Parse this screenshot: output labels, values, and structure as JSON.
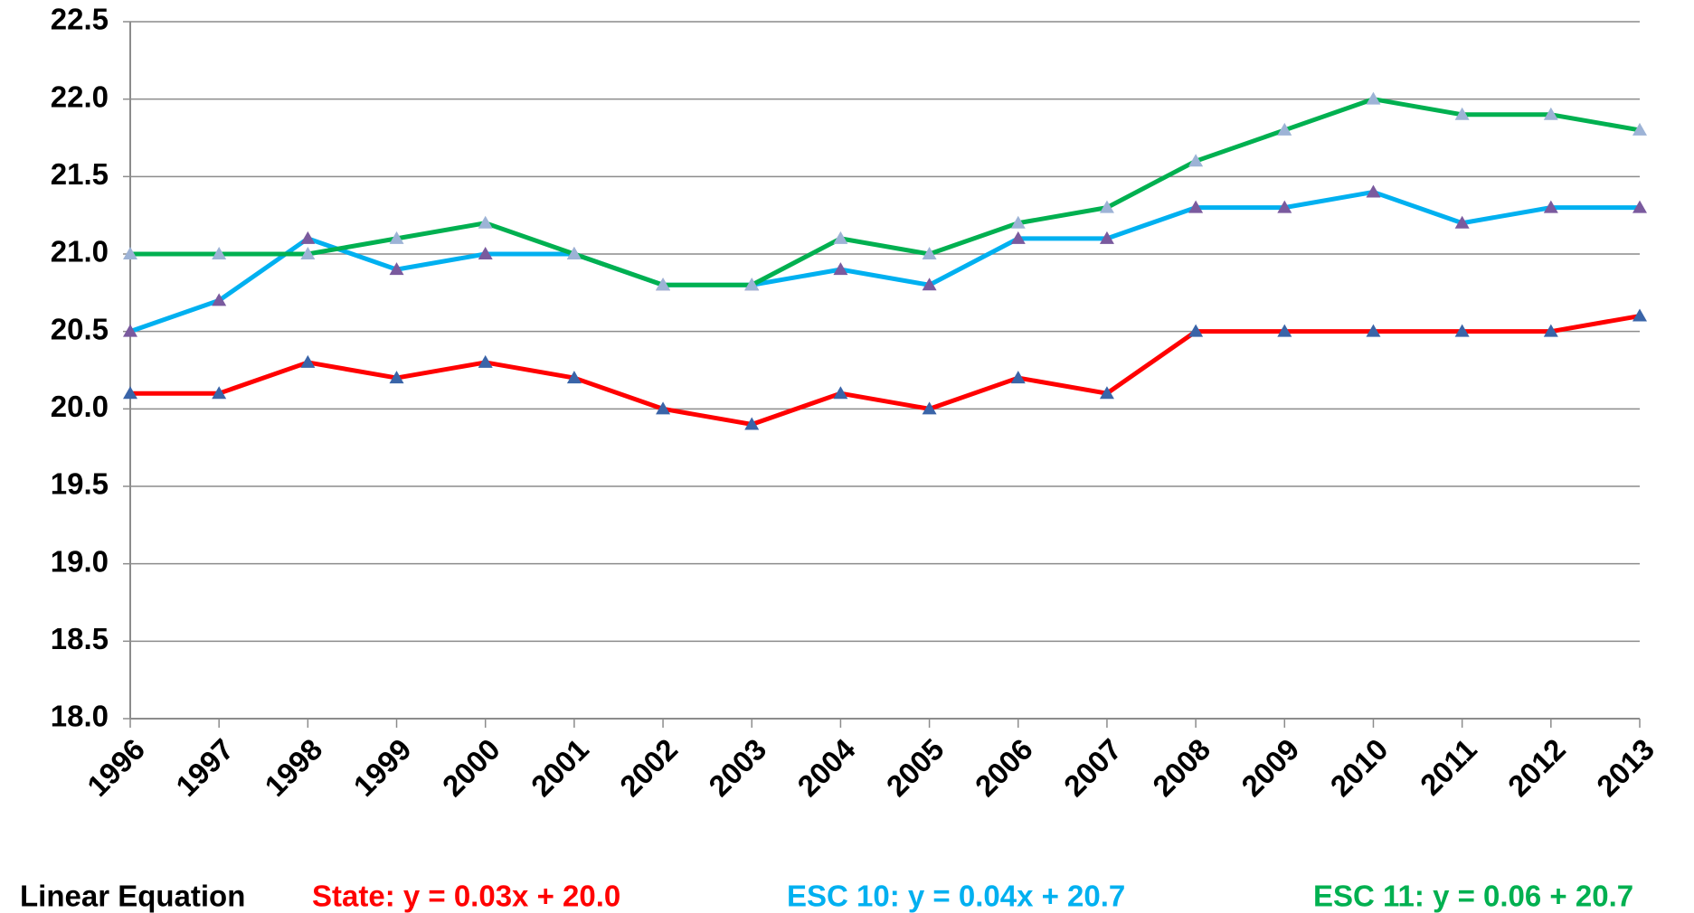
{
  "chart_data": {
    "type": "line",
    "categories": [
      "1996",
      "1997",
      "1998",
      "1999",
      "2000",
      "2001",
      "2002",
      "2003",
      "2004",
      "2005",
      "2006",
      "2007",
      "2008",
      "2009",
      "2010",
      "2011",
      "2012",
      "2013"
    ],
    "series": [
      {
        "color": "#ff0000",
        "marker_color": "#3a64a8",
        "values": [
          20.1,
          20.1,
          20.3,
          20.2,
          20.3,
          20.2,
          20.0,
          19.9,
          20.1,
          20.0,
          20.2,
          20.1,
          20.5,
          20.5,
          20.5,
          20.5,
          20.5,
          20.6
        ]
      },
      {
        "color": "#00b0f0",
        "marker_color": "#7a5a9e",
        "values": [
          20.5,
          20.7,
          21.1,
          20.9,
          21.0,
          21.0,
          20.8,
          20.8,
          20.9,
          20.8,
          21.1,
          21.1,
          21.3,
          21.3,
          21.4,
          21.2,
          21.3,
          21.3
        ]
      },
      {
        "color": "#00b050",
        "marker_color": "#9db3d6",
        "values": [
          21.0,
          21.0,
          21.0,
          21.1,
          21.2,
          21.0,
          20.8,
          20.8,
          21.1,
          21.0,
          21.2,
          21.3,
          21.6,
          21.8,
          22.0,
          21.9,
          21.9,
          21.8
        ]
      }
    ],
    "ylim": [
      18,
      22.5
    ],
    "yticks": [
      {
        "value": 18,
        "label": "18.0"
      },
      {
        "value": 18.5,
        "label": "18.5"
      },
      {
        "value": 19,
        "label": "19.0"
      },
      {
        "value": 19.5,
        "label": "19.5"
      },
      {
        "value": 20,
        "label": "20.0"
      },
      {
        "value": 20.5,
        "label": "20.5"
      },
      {
        "value": 21,
        "label": "21.0"
      },
      {
        "value": 21.5,
        "label": "21.5"
      },
      {
        "value": 22,
        "label": "22.0"
      },
      {
        "value": 22.5,
        "label": "22.5"
      }
    ],
    "grid": true,
    "annotations": [
      {
        "text": "Linear Equation",
        "color": "#000000"
      },
      {
        "text": "State: y = 0.03x + 20.0",
        "color": "#ff0000"
      },
      {
        "text": "ESC 10: y = 0.04x + 20.7",
        "color": "#00b0f0"
      },
      {
        "text": "ESC 11: y = 0.06 + 20.7",
        "color": "#00b050"
      }
    ]
  }
}
